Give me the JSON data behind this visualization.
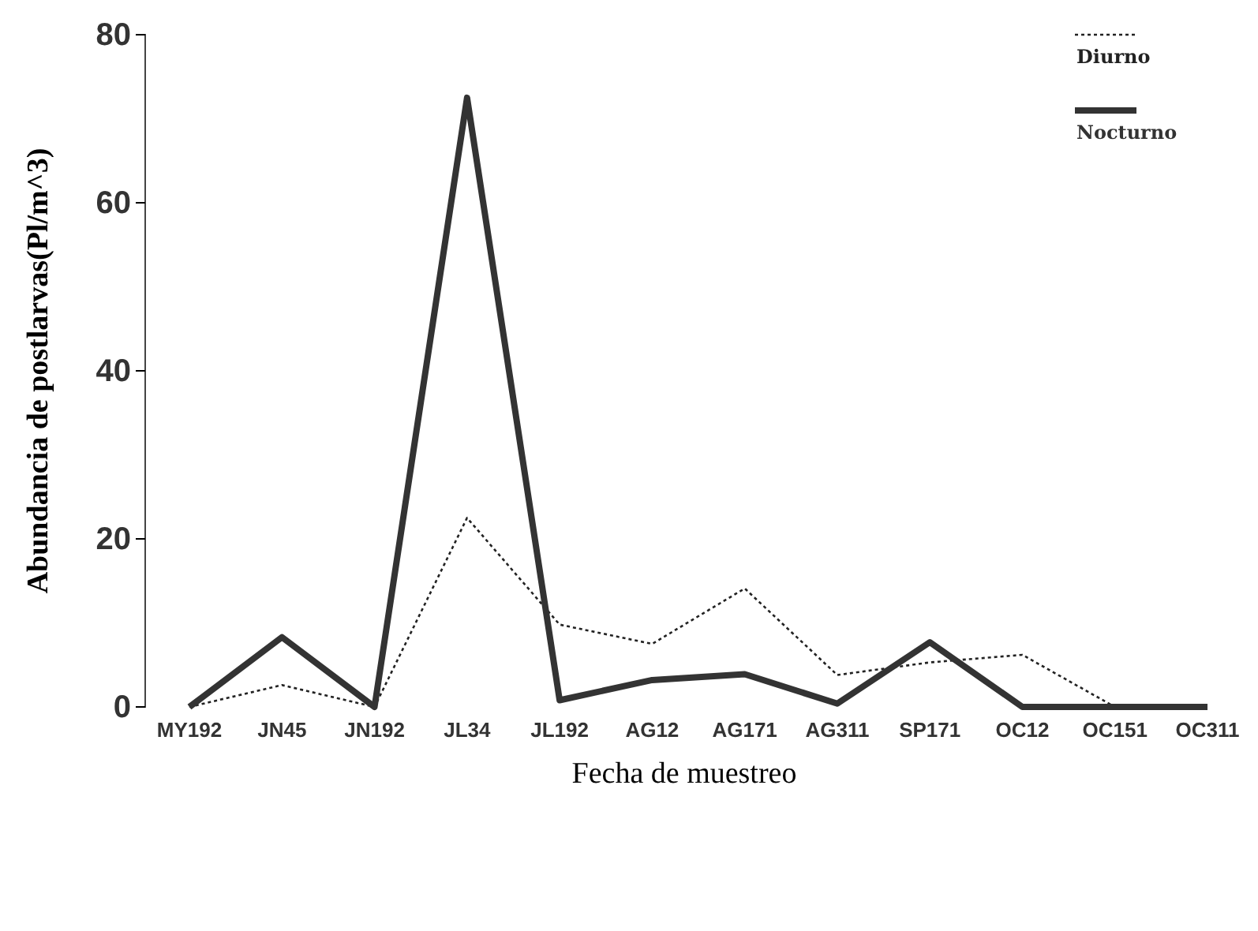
{
  "chart_data": {
    "type": "line",
    "xlabel": "Fecha de muestreo",
    "ylabel": "Abundancia de postlarvas(Pl/m^3)",
    "categories": [
      "MY192",
      "JN45",
      "JN192",
      "JL34",
      "JL192",
      "AG12",
      "AG171",
      "AG311",
      "SP171",
      "OC12",
      "OC151",
      "OC311"
    ],
    "ylim": [
      0,
      80
    ],
    "yticks": [
      0,
      20,
      40,
      60,
      80
    ],
    "grid": false,
    "legend": "top right",
    "series": [
      {
        "name": "Diurno",
        "color": "#222222",
        "line_style": "dotted",
        "values": [
          0,
          2.6,
          0,
          22.5,
          9.8,
          7.5,
          14.1,
          3.8,
          5.3,
          6.2,
          0,
          0
        ]
      },
      {
        "name": "Nocturno",
        "color": "#333333",
        "line_style": "solid",
        "values": [
          0,
          8.3,
          0,
          72.5,
          0.8,
          3.2,
          3.9,
          0.4,
          7.7,
          0,
          0,
          0
        ]
      }
    ]
  }
}
